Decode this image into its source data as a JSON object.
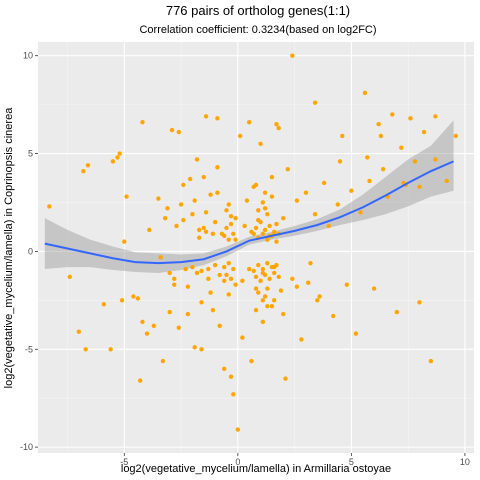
{
  "chart_data": {
    "type": "scatter",
    "title": "776 pairs of ortholog genes(1:1)",
    "subtitle": "Correlation coefficient: 0.3234(based on log2FC)",
    "xlabel": "log2(vegetative_mycelium/lamella) in Armillaria ostoyae",
    "ylabel": "log2(vegetative_mycelium/lamella) in Coprinopsis cinerea",
    "xlim": [
      -8.8,
      10.4
    ],
    "ylim": [
      -10.3,
      10.7
    ],
    "x_ticks": [
      -5,
      0,
      5,
      10
    ],
    "x_tick_labels": [
      "-5",
      "0",
      "5",
      "10"
    ],
    "y_ticks": [
      -10,
      -5,
      0,
      5,
      10
    ],
    "y_tick_labels": [
      "-10",
      "-5",
      "0",
      "5",
      "10"
    ],
    "grid": true,
    "panel_background": "#ebebeb",
    "point_color": "#ffa500",
    "smooth_color": "#3366ff",
    "ribbon_color": "#999999",
    "points": [
      [
        -8.3,
        2.3
      ],
      [
        -7.4,
        -1.3
      ],
      [
        -7.0,
        -4.1
      ],
      [
        -6.8,
        4.1
      ],
      [
        -6.7,
        -5.0
      ],
      [
        -6.6,
        4.4
      ],
      [
        -5.9,
        -2.7
      ],
      [
        -5.6,
        -5.0
      ],
      [
        -5.5,
        4.6
      ],
      [
        -5.3,
        4.8
      ],
      [
        -5.2,
        5.0
      ],
      [
        -5.1,
        -2.5
      ],
      [
        -5.0,
        0.5
      ],
      [
        -4.9,
        2.8
      ],
      [
        -4.6,
        -2.3
      ],
      [
        -4.4,
        -2.4
      ],
      [
        -4.3,
        -6.6
      ],
      [
        -4.2,
        6.6
      ],
      [
        -4.0,
        -4.2
      ],
      [
        -3.9,
        1.1
      ],
      [
        -3.7,
        -3.8
      ],
      [
        -3.5,
        2.7
      ],
      [
        -3.4,
        -0.3
      ],
      [
        -3.3,
        -5.6
      ],
      [
        -3.2,
        1.7
      ],
      [
        -3.1,
        2.2
      ],
      [
        -3.0,
        -1.1
      ],
      [
        -2.9,
        6.2
      ],
      [
        -2.8,
        -1.4
      ],
      [
        -2.7,
        1.3
      ],
      [
        -2.6,
        -3.9
      ],
      [
        -2.5,
        2.4
      ],
      [
        -2.4,
        1.6
      ],
      [
        -2.3,
        -0.9
      ],
      [
        -2.2,
        -1.8
      ],
      [
        -2.1,
        3.7
      ],
      [
        -2.0,
        1.9
      ],
      [
        -1.9,
        -4.9
      ],
      [
        -1.8,
        4.7
      ],
      [
        -1.7,
        0.7
      ],
      [
        -1.6,
        -2.6
      ],
      [
        -1.5,
        1.2
      ],
      [
        -1.4,
        6.9
      ],
      [
        -1.3,
        -1.4
      ],
      [
        -1.2,
        2.9
      ],
      [
        -1.1,
        -3.0
      ],
      [
        -1.0,
        1.5
      ],
      [
        -0.9,
        4.3
      ],
      [
        -0.8,
        -1.2
      ],
      [
        -0.7,
        0.9
      ],
      [
        -0.6,
        -6.0
      ],
      [
        -0.5,
        2.1
      ],
      [
        -0.4,
        -2.2
      ],
      [
        -0.3,
        1.8
      ],
      [
        -0.2,
        -7.3
      ],
      [
        -0.1,
        0.6
      ],
      [
        0.0,
        -9.1
      ],
      [
        0.1,
        5.9
      ],
      [
        0.2,
        -1.5
      ],
      [
        0.3,
        1.3
      ],
      [
        0.4,
        2.6
      ],
      [
        0.5,
        -0.9
      ],
      [
        0.6,
        1.0
      ],
      [
        0.7,
        3.3
      ],
      [
        0.8,
        -1.9
      ],
      [
        0.9,
        1.6
      ],
      [
        1.0,
        5.5
      ],
      [
        1.1,
        -1.1
      ],
      [
        1.2,
        2.2
      ],
      [
        1.3,
        -2.8
      ],
      [
        1.4,
        0.8
      ],
      [
        1.5,
        3.8
      ],
      [
        1.6,
        -0.8
      ],
      [
        1.7,
        1.4
      ],
      [
        1.8,
        6.3
      ],
      [
        1.9,
        -2.0
      ],
      [
        2.0,
        1.7
      ],
      [
        2.1,
        -6.5
      ],
      [
        2.2,
        4.2
      ],
      [
        2.4,
        -1.4
      ],
      [
        2.6,
        2.6
      ],
      [
        2.8,
        -4.5
      ],
      [
        3.0,
        3.0
      ],
      [
        3.2,
        -0.6
      ],
      [
        3.4,
        1.9
      ],
      [
        3.6,
        -2.3
      ],
      [
        3.8,
        3.5
      ],
      [
        4.0,
        1.3
      ],
      [
        4.2,
        -3.3
      ],
      [
        4.4,
        2.4
      ],
      [
        4.6,
        5.9
      ],
      [
        4.8,
        -1.7
      ],
      [
        5.0,
        3.1
      ],
      [
        5.2,
        -4.2
      ],
      [
        5.4,
        2.0
      ],
      [
        5.6,
        8.1
      ],
      [
        5.8,
        3.6
      ],
      [
        6.0,
        -1.9
      ],
      [
        6.2,
        6.5
      ],
      [
        6.4,
        4.2
      ],
      [
        6.6,
        2.8
      ],
      [
        6.8,
        7.0
      ],
      [
        7.0,
        -3.1
      ],
      [
        7.2,
        5.3
      ],
      [
        7.4,
        3.4
      ],
      [
        7.6,
        6.8
      ],
      [
        7.8,
        4.6
      ],
      [
        8.0,
        -2.6
      ],
      [
        8.2,
        6.1
      ],
      [
        8.5,
        -5.6
      ],
      [
        8.7,
        6.9
      ],
      [
        9.2,
        3.6
      ],
      [
        9.6,
        5.9
      ],
      [
        3.5,
        -2.5
      ],
      [
        2.4,
        10.0
      ],
      [
        3.4,
        7.6
      ],
      [
        1.7,
        6.5
      ],
      [
        0.5,
        6.6
      ],
      [
        -0.9,
        6.8
      ],
      [
        -2.6,
        6.1
      ],
      [
        4.5,
        4.6
      ],
      [
        5.7,
        4.8
      ],
      [
        6.3,
        5.9
      ],
      [
        7.3,
        3.5
      ],
      [
        8.0,
        3.3
      ],
      [
        8.7,
        4.7
      ],
      [
        -1.6,
        -5.0
      ],
      [
        -0.8,
        -3.8
      ],
      [
        -0.3,
        -6.4
      ],
      [
        0.2,
        -4.4
      ],
      [
        0.6,
        -5.6
      ],
      [
        1.1,
        -3.6
      ],
      [
        1.6,
        -2.5
      ],
      [
        2.0,
        -3.2
      ],
      [
        2.6,
        -1.8
      ],
      [
        3.1,
        -1.6
      ],
      [
        -2.2,
        -3.2
      ],
      [
        -3.0,
        -3.1
      ],
      [
        -4.2,
        -3.6
      ],
      [
        -2.8,
        -1.7
      ],
      [
        -2.0,
        -0.8
      ],
      [
        -1.8,
        -1.1
      ],
      [
        -1.2,
        -2.1
      ],
      [
        -0.6,
        -1.5
      ],
      [
        -1.9,
        2.6
      ],
      [
        -1.4,
        2.0
      ],
      [
        -0.9,
        3.0
      ],
      [
        -0.4,
        2.4
      ],
      [
        -2.4,
        3.4
      ],
      [
        -1.5,
        3.8
      ],
      [
        0.7,
        0.9
      ],
      [
        0.8,
        1.2
      ],
      [
        0.9,
        0.7
      ],
      [
        1.0,
        1.5
      ],
      [
        1.1,
        0.9
      ],
      [
        1.2,
        1.1
      ],
      [
        1.3,
        0.6
      ],
      [
        1.4,
        1.3
      ],
      [
        1.5,
        0.8
      ],
      [
        1.6,
        1.0
      ],
      [
        1.7,
        0.5
      ],
      [
        1.8,
        0.9
      ],
      [
        0.7,
        -1.0
      ],
      [
        0.8,
        -1.3
      ],
      [
        0.9,
        -0.7
      ],
      [
        1.0,
        -1.5
      ],
      [
        1.1,
        -0.9
      ],
      [
        1.2,
        -1.2
      ],
      [
        1.3,
        -0.6
      ],
      [
        1.4,
        -1.4
      ],
      [
        1.5,
        -0.8
      ],
      [
        1.6,
        -1.1
      ],
      [
        1.7,
        -0.7
      ],
      [
        1.8,
        -1.3
      ],
      [
        -0.6,
        0.8
      ],
      [
        -0.5,
        1.2
      ],
      [
        -0.4,
        0.6
      ],
      [
        -0.3,
        1.4
      ],
      [
        -0.2,
        0.9
      ],
      [
        -0.1,
        1.7
      ],
      [
        -0.6,
        -0.8
      ],
      [
        -0.5,
        -1.2
      ],
      [
        -0.4,
        -0.6
      ],
      [
        -0.3,
        -1.4
      ],
      [
        -0.2,
        -0.9
      ],
      [
        -0.1,
        -1.7
      ],
      [
        0.9,
        2.1
      ],
      [
        1.1,
        2.5
      ],
      [
        1.3,
        1.9
      ],
      [
        1.5,
        2.8
      ],
      [
        0.8,
        3.4
      ],
      [
        1.2,
        3.0
      ],
      [
        0.9,
        -2.1
      ],
      [
        1.1,
        -2.5
      ],
      [
        1.3,
        -1.9
      ],
      [
        1.5,
        -2.8
      ],
      [
        0.8,
        -3.0
      ],
      [
        1.2,
        -2.3
      ],
      [
        -1.0,
        -0.7
      ],
      [
        -1.3,
        -0.9
      ],
      [
        -1.6,
        -1.0
      ],
      [
        -1.1,
        0.9
      ],
      [
        -1.4,
        1.0
      ],
      [
        -1.7,
        1.1
      ]
    ],
    "smooth_line": [
      [
        -8.5,
        0.4
      ],
      [
        -7.5,
        0.15
      ],
      [
        -6.5,
        -0.1
      ],
      [
        -5.5,
        -0.35
      ],
      [
        -4.5,
        -0.55
      ],
      [
        -3.5,
        -0.6
      ],
      [
        -2.5,
        -0.55
      ],
      [
        -1.5,
        -0.4
      ],
      [
        -0.5,
        0.0
      ],
      [
        0.5,
        0.55
      ],
      [
        1.5,
        0.8
      ],
      [
        2.5,
        1.05
      ],
      [
        3.5,
        1.35
      ],
      [
        4.5,
        1.75
      ],
      [
        5.5,
        2.25
      ],
      [
        6.5,
        2.85
      ],
      [
        7.5,
        3.5
      ],
      [
        8.5,
        4.1
      ],
      [
        9.5,
        4.6
      ]
    ],
    "ribbon": [
      [
        -8.5,
        -0.9,
        1.7
      ],
      [
        -7.5,
        -0.8,
        1.1
      ],
      [
        -6.5,
        -0.8,
        0.6
      ],
      [
        -5.5,
        -0.95,
        0.25
      ],
      [
        -4.5,
        -1.05,
        -0.05
      ],
      [
        -3.5,
        -1.1,
        -0.1
      ],
      [
        -2.5,
        -0.95,
        -0.15
      ],
      [
        -1.5,
        -0.7,
        -0.1
      ],
      [
        -0.5,
        -0.25,
        0.25
      ],
      [
        0.5,
        0.35,
        0.75
      ],
      [
        1.5,
        0.6,
        1.0
      ],
      [
        2.5,
        0.8,
        1.3
      ],
      [
        3.5,
        1.05,
        1.65
      ],
      [
        4.5,
        1.35,
        2.15
      ],
      [
        5.5,
        1.6,
        2.9
      ],
      [
        6.5,
        1.9,
        3.8
      ],
      [
        7.5,
        2.3,
        4.7
      ],
      [
        8.5,
        2.8,
        5.4
      ],
      [
        9.5,
        3.1,
        6.7
      ]
    ]
  }
}
